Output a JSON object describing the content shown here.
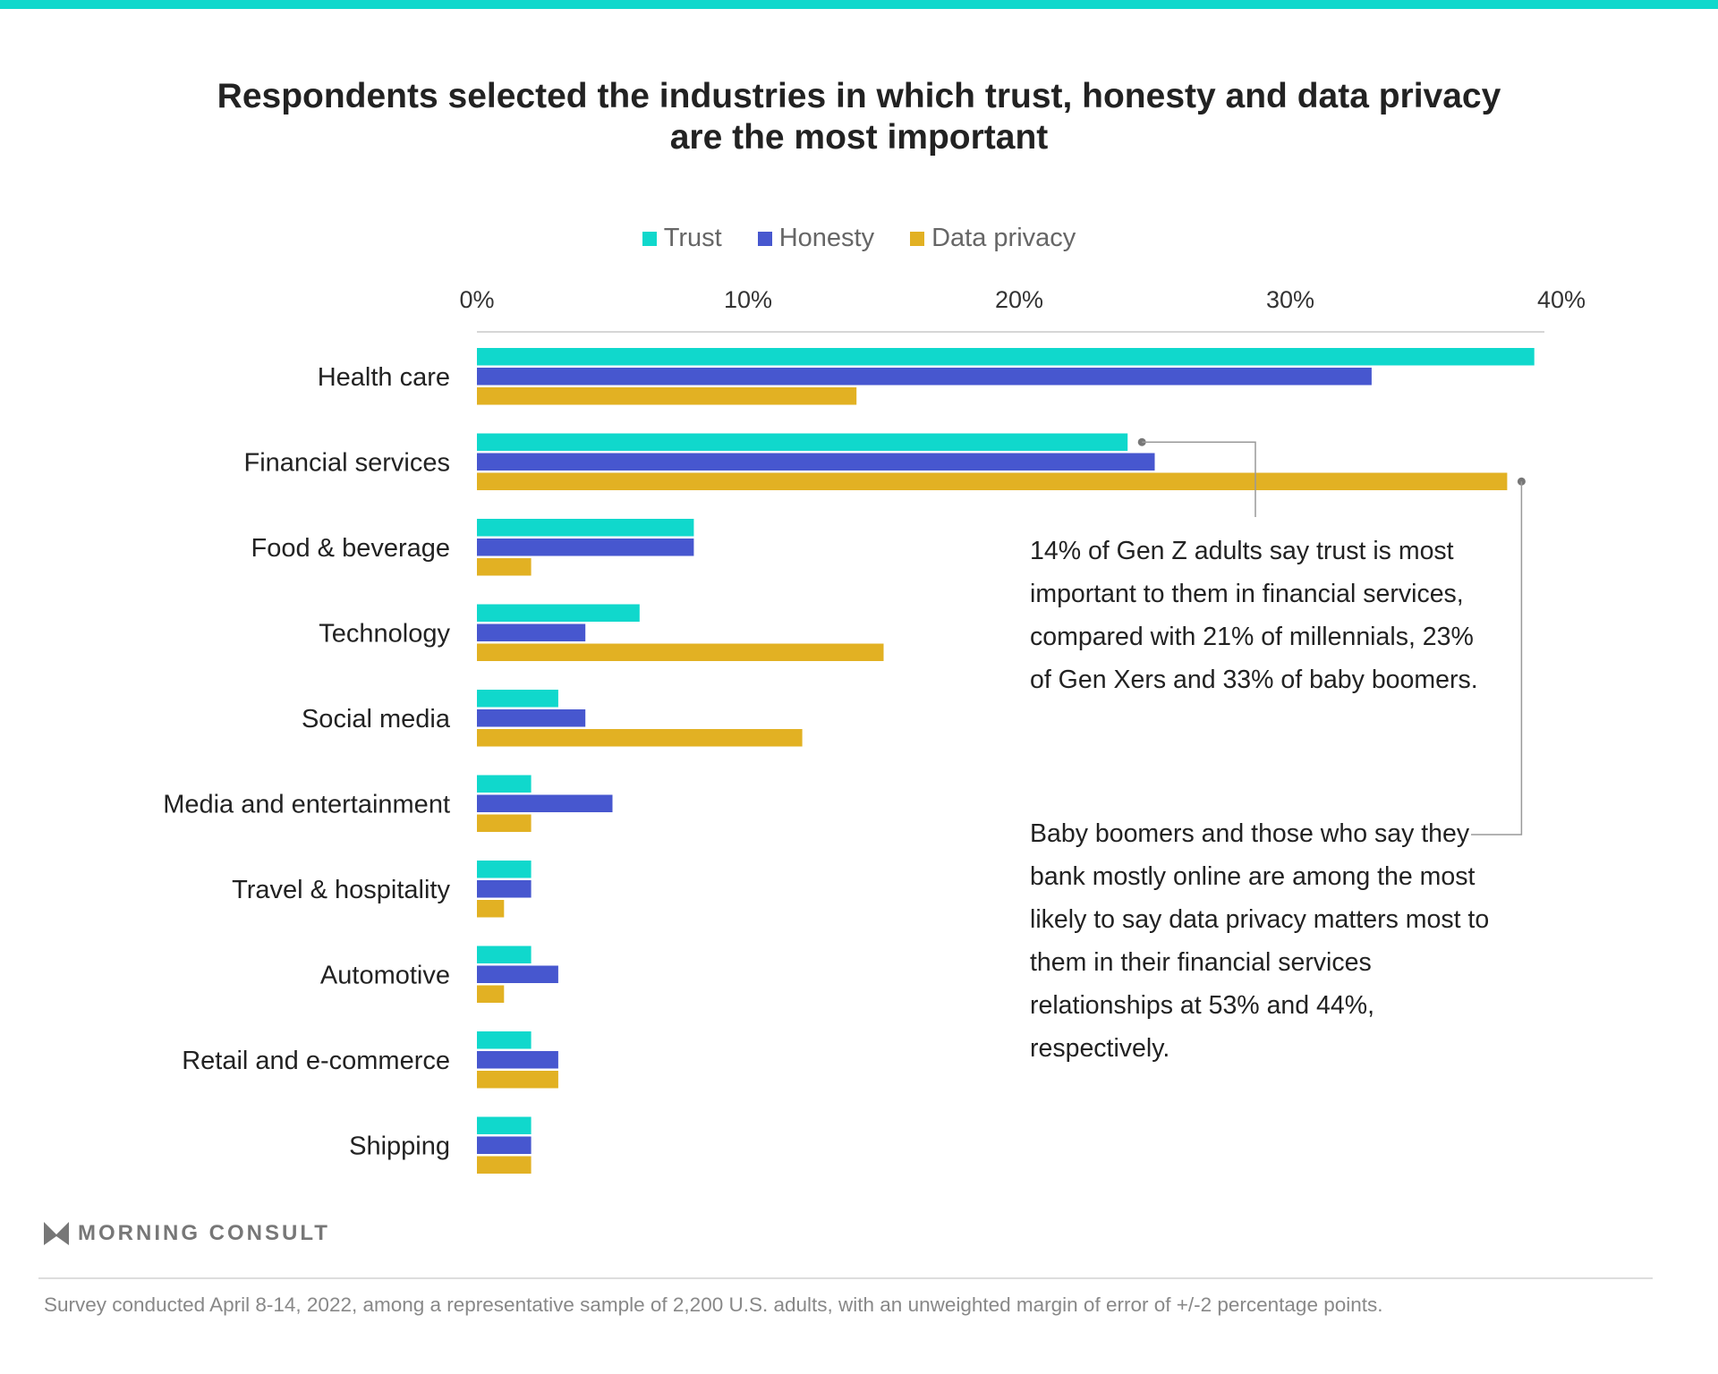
{
  "chart_data": {
    "type": "bar",
    "orientation": "horizontal",
    "title": "Respondents selected the industries in which trust, honesty and data privacy are the most important",
    "title_lines": [
      "Respondents selected the industries in which trust, honesty and data privacy",
      "are the most important"
    ],
    "categories": [
      "Health care",
      "Financial services",
      "Food & beverage",
      "Technology",
      "Social media",
      "Media and entertainment",
      "Travel & hospitality",
      "Automotive",
      "Retail and e-commerce",
      "Shipping"
    ],
    "series": [
      {
        "name": "Trust",
        "color": "#10d8cc",
        "values": [
          39,
          24,
          8,
          6,
          3,
          2,
          2,
          2,
          2,
          2
        ]
      },
      {
        "name": "Honesty",
        "color": "#4757cf",
        "values": [
          33,
          25,
          8,
          4,
          4,
          5,
          2,
          3,
          3,
          2
        ]
      },
      {
        "name": "Data privacy",
        "color": "#e2b123",
        "values": [
          14,
          38,
          2,
          15,
          12,
          2,
          1,
          1,
          3,
          2
        ]
      }
    ],
    "xlim": [
      0,
      40
    ],
    "x_ticks": [
      0,
      10,
      20,
      30,
      40
    ],
    "x_tick_labels": [
      "0%",
      "10%",
      "20%",
      "30%",
      "40%"
    ],
    "legend_position": "top",
    "grid": false,
    "annotations": [
      {
        "target": "Financial services / Trust",
        "text": "14% of Gen Z adults say trust is most important to them in financial services, compared with 21% of millennials, 23% of Gen Xers and 33% of baby boomers."
      },
      {
        "target": "Financial services / Data privacy",
        "text": "Baby boomers and those who say they bank mostly online are among the most likely to say data privacy matters most to them in their financial services relationships at 53% and 44%, respectively."
      }
    ]
  },
  "brand": {
    "logo_text": "MORNING CONSULT",
    "accent": "#10d8cc"
  },
  "footer": {
    "note": "Survey conducted April 8-14, 2022, among a representative sample of 2,200 U.S. adults, with an unweighted margin of error of +/-2 percentage points."
  }
}
